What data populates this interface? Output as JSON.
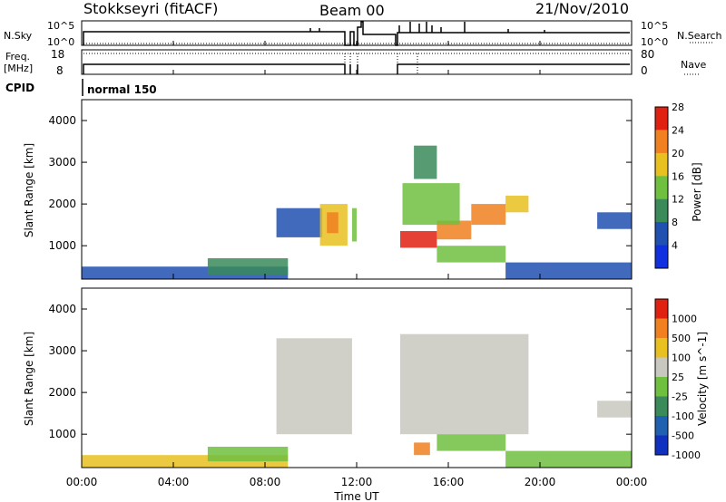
{
  "header": {
    "station": "Stokkseyri (fitACF)",
    "beam": "Beam 00",
    "date": "21/Nov/2010"
  },
  "params": {
    "nsky_label": "N.Sky",
    "nsearch_label": "N.Search",
    "nsky_ticks": [
      "10^5",
      "10^0"
    ],
    "nsearch_ticks": [
      "10^5",
      "10^0"
    ],
    "freq_label": "Freq.",
    "freq_unit": "[MHz]",
    "freq_ticks": [
      "18",
      "8"
    ],
    "nave_label": "Nave",
    "nave_ticks": [
      "80",
      "0"
    ],
    "cpid_label": "CPID",
    "cpid_value": "normal 150"
  },
  "chart_data": [
    {
      "type": "heatmap",
      "name": "power",
      "ylabel": "Slant Range [km]",
      "yticks": [
        "1000",
        "2000",
        "3000",
        "4000"
      ],
      "ylim": [
        200,
        4500
      ],
      "xlim": [
        "00:00",
        "24:00"
      ],
      "colorbar_label": "Power [dB]",
      "colorbar_ticks": [
        "4",
        "8",
        "12",
        "16",
        "20",
        "24",
        "28"
      ],
      "colors": [
        "#1030e0",
        "#2050b0",
        "#3a8a5a",
        "#70c040",
        "#e8c020",
        "#f08020",
        "#e02010"
      ],
      "regions": [
        {
          "t0": 0.0,
          "t1": 9.0,
          "r0": 200,
          "r1": 500,
          "level": 1
        },
        {
          "t0": 5.5,
          "t1": 9.0,
          "r0": 300,
          "r1": 700,
          "level": 2
        },
        {
          "t0": 8.5,
          "t1": 10.5,
          "r0": 1200,
          "r1": 1900,
          "level": 1
        },
        {
          "t0": 10.4,
          "t1": 11.6,
          "r0": 1000,
          "r1": 2000,
          "level": 4
        },
        {
          "t0": 10.7,
          "t1": 11.2,
          "r0": 1300,
          "r1": 1800,
          "level": 5
        },
        {
          "t0": 11.8,
          "t1": 12.0,
          "r0": 1100,
          "r1": 1900,
          "level": 3
        },
        {
          "t0": 13.9,
          "t1": 15.5,
          "r0": 950,
          "r1": 1350,
          "level": 6
        },
        {
          "t0": 15.5,
          "t1": 17.0,
          "r0": 1150,
          "r1": 1600,
          "level": 5
        },
        {
          "t0": 17.0,
          "t1": 18.5,
          "r0": 1500,
          "r1": 2000,
          "level": 5
        },
        {
          "t0": 18.5,
          "t1": 19.5,
          "r0": 1800,
          "r1": 2200,
          "level": 4
        },
        {
          "t0": 14.0,
          "t1": 16.5,
          "r0": 1500,
          "r1": 2500,
          "level": 3
        },
        {
          "t0": 14.5,
          "t1": 15.5,
          "r0": 2600,
          "r1": 3400,
          "level": 2
        },
        {
          "t0": 15.5,
          "t1": 18.5,
          "r0": 600,
          "r1": 1000,
          "level": 3
        },
        {
          "t0": 18.5,
          "t1": 24.0,
          "r0": 200,
          "r1": 600,
          "level": 1
        },
        {
          "t0": 22.5,
          "t1": 24.0,
          "r0": 1400,
          "r1": 1800,
          "level": 1
        }
      ]
    },
    {
      "type": "heatmap",
      "name": "velocity",
      "ylabel": "Slant Range [km]",
      "yticks": [
        "1000",
        "2000",
        "3000",
        "4000"
      ],
      "ylim": [
        200,
        4500
      ],
      "xlim": [
        "00:00",
        "24:00"
      ],
      "colorbar_label": "Velocity [m s^-1]",
      "colorbar_ticks": [
        "1000",
        "500",
        "100",
        "25",
        "-25",
        "-100",
        "-500",
        "-1000"
      ],
      "colors": [
        "#1030c0",
        "#2060b0",
        "#3a8a5a",
        "#70c040",
        "#c8c8c0",
        "#e8c020",
        "#f08020",
        "#e02010"
      ],
      "regions": [
        {
          "t0": 0.0,
          "t1": 9.0,
          "r0": 200,
          "r1": 500,
          "level": 5
        },
        {
          "t0": 5.5,
          "t1": 9.0,
          "r0": 350,
          "r1": 700,
          "level": 3
        },
        {
          "t0": 8.5,
          "t1": 11.8,
          "r0": 1000,
          "r1": 3300,
          "level": 4
        },
        {
          "t0": 13.9,
          "t1": 19.5,
          "r0": 1000,
          "r1": 3400,
          "level": 4
        },
        {
          "t0": 15.5,
          "t1": 18.5,
          "r0": 600,
          "r1": 1000,
          "level": 3
        },
        {
          "t0": 14.5,
          "t1": 15.2,
          "r0": 500,
          "r1": 800,
          "level": 6
        },
        {
          "t0": 18.5,
          "t1": 24.0,
          "r0": 200,
          "r1": 600,
          "level": 3
        },
        {
          "t0": 22.5,
          "t1": 24.0,
          "r0": 1400,
          "r1": 1800,
          "level": 4
        }
      ]
    }
  ],
  "xaxis": {
    "label": "Time UT",
    "ticks": [
      "00:00",
      "04:00",
      "08:00",
      "12:00",
      "16:00",
      "20:00",
      "00:00"
    ]
  }
}
